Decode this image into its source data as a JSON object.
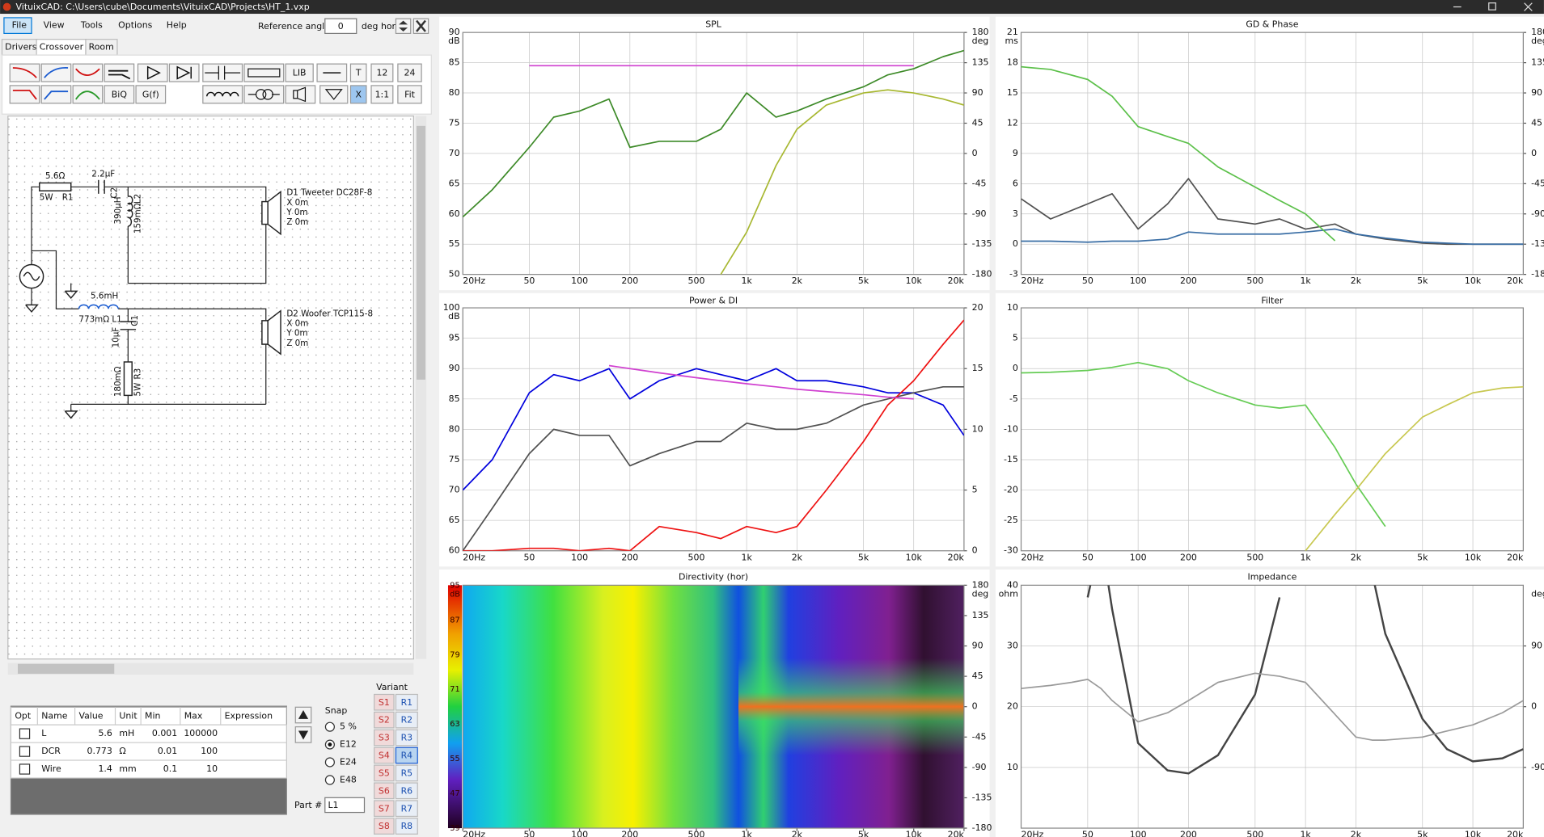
{
  "window": {
    "title": "VituixCAD: C:\\Users\\cube\\Documents\\VituixCAD\\Projects\\HT_1.vxp"
  },
  "menu": [
    "File",
    "View",
    "Tools",
    "Options",
    "Help"
  ],
  "reference": {
    "label": "Reference angle",
    "value": "0",
    "unit": "deg hor"
  },
  "tabs": [
    "Drivers",
    "Crossover",
    "Room"
  ],
  "toolbar": [
    "LIB",
    "T",
    "12",
    "24",
    "BiQ",
    "G(f)",
    "X",
    "1:1",
    "Fit"
  ],
  "schematic": {
    "labels": [
      "5.6Ω",
      "5W",
      "R1",
      "2.2µF",
      "C2",
      "390µH",
      "L2",
      "159mΩ",
      "D1 Tweeter DC28F-8",
      "X 0m",
      "Y 0m",
      "Z 0m",
      "5.6mH",
      "773mΩ L1",
      "10µF",
      "C1",
      "180mΩ",
      "R3",
      "5W",
      "D2 Woofer TCP115-8",
      "X 0m",
      "Y 0m",
      "Z 0m"
    ]
  },
  "table": {
    "headers": [
      "Opt",
      "Name",
      "Value",
      "Unit",
      "Min",
      "Max",
      "Expression"
    ],
    "rows": [
      [
        "L",
        5.6,
        "mH",
        0.001,
        100000
      ],
      [
        "DCR",
        0.773,
        "Ω",
        0.01,
        100
      ],
      [
        "Wire",
        1.4,
        "mm",
        0.1,
        10
      ]
    ]
  },
  "snap": {
    "title": "Snap",
    "options": [
      "5 %",
      "E12",
      "E24",
      "E48"
    ],
    "selected": 1
  },
  "part": {
    "label": "Part #",
    "value": "L1"
  },
  "variant": {
    "title": "Variant",
    "s": [
      "S1",
      "S2",
      "S3",
      "S4",
      "S5",
      "S6",
      "S7",
      "S8"
    ],
    "r": [
      "R1",
      "R2",
      "R3",
      "R4",
      "R5",
      "R6",
      "R7",
      "R8"
    ],
    "selected": 3
  },
  "chart_data": [
    {
      "type": "line",
      "title": "SPL",
      "y_unit": "dB",
      "y2_unit": "deg",
      "xscale": "log",
      "grid": true,
      "xlim": [
        20,
        20000
      ],
      "xticks": [
        {
          "value": 20,
          "label": "20Hz"
        },
        50,
        100,
        200,
        500,
        {
          "value": 1000,
          "label": "1k"
        },
        {
          "value": 2000,
          "label": "2k"
        },
        {
          "value": 5000,
          "label": "5k"
        },
        {
          "value": 10000,
          "label": "10k"
        },
        {
          "value": 20000,
          "label": "20k"
        }
      ],
      "ylim": [
        50,
        90
      ],
      "yticks": [
        50,
        55,
        60,
        65,
        70,
        75,
        80,
        85,
        90
      ],
      "y2lim": [
        -180,
        180
      ],
      "y2ticks": [
        -180,
        -135,
        -90,
        -45,
        0,
        45,
        90,
        135,
        180
      ],
      "x": [
        20,
        30,
        50,
        70,
        100,
        150,
        200,
        300,
        500,
        700,
        1000,
        1500,
        2000,
        3000,
        5000,
        7000,
        10000,
        15000,
        20000
      ],
      "series": [
        {
          "color": "#3d8a28",
          "values": [
            59.5,
            64,
            71,
            76,
            77,
            79,
            71,
            72,
            72,
            74,
            80,
            76,
            77,
            79,
            81,
            83,
            84,
            86,
            87
          ]
        },
        {
          "color": "#d040d0",
          "values": [
            null,
            null,
            84.5,
            84.5,
            84.5,
            84.5,
            84.5,
            84.5,
            84.5,
            84.5,
            84.5,
            84.5,
            84.5,
            84.5,
            84.5,
            84.5,
            84.5,
            null,
            null
          ]
        },
        {
          "color": "#a8b832",
          "values": [
            null,
            null,
            null,
            null,
            null,
            null,
            null,
            null,
            null,
            50,
            57,
            68,
            74,
            78,
            80,
            80.5,
            80,
            79,
            78
          ]
        }
      ]
    },
    {
      "type": "line",
      "title": "GD & Phase",
      "y_unit": "ms",
      "y2_unit": "deg",
      "xscale": "log",
      "grid": true,
      "xlim": [
        20,
        20000
      ],
      "xticks": [
        {
          "value": 20,
          "label": "20Hz"
        },
        50,
        100,
        200,
        500,
        {
          "value": 1000,
          "label": "1k"
        },
        {
          "value": 2000,
          "label": "2k"
        },
        {
          "value": 5000,
          "label": "5k"
        },
        {
          "value": 10000,
          "label": "10k"
        },
        {
          "value": 20000,
          "label": "20k"
        }
      ],
      "ylim": [
        -3,
        21
      ],
      "yticks": [
        -3,
        0,
        3,
        6,
        9,
        12,
        15,
        18,
        21
      ],
      "y2lim": [
        -180,
        180
      ],
      "y2ticks": [
        -180,
        -135,
        -90,
        -45,
        0,
        45,
        90,
        135,
        180
      ],
      "x": [
        20,
        30,
        50,
        70,
        100,
        150,
        200,
        300,
        500,
        700,
        1000,
        1500,
        2000,
        3000,
        5000,
        7000,
        10000,
        15000,
        20000
      ],
      "series": [
        {
          "color": "#505050",
          "values": [
            4.5,
            2.5,
            4,
            5,
            1.5,
            4,
            6.5,
            2.5,
            2,
            2.5,
            1.5,
            2,
            1,
            0.5,
            0.1,
            0,
            0,
            0,
            0
          ]
        },
        {
          "color": "#3a6ea5",
          "values": [
            0.3,
            0.3,
            0.2,
            0.3,
            0.3,
            0.5,
            1.2,
            1,
            1,
            1,
            1.2,
            1.5,
            1,
            0.6,
            0.2,
            0.1,
            0,
            0,
            0
          ]
        },
        {
          "color": "#5cc04a",
          "axis": "y2",
          "values": [
            129,
            125,
            110,
            85,
            40,
            25,
            15,
            -20,
            -50,
            -70,
            -90,
            -130,
            null,
            null,
            null,
            null,
            null,
            null,
            null
          ]
        }
      ]
    },
    {
      "type": "line",
      "title": "Power & DI",
      "y_unit": "dB",
      "xscale": "log",
      "grid": true,
      "xlim": [
        20,
        20000
      ],
      "xticks": [
        {
          "value": 20,
          "label": "20Hz"
        },
        50,
        100,
        200,
        500,
        {
          "value": 1000,
          "label": "1k"
        },
        {
          "value": 2000,
          "label": "2k"
        },
        {
          "value": 5000,
          "label": "5k"
        },
        {
          "value": 10000,
          "label": "10k"
        },
        {
          "value": 20000,
          "label": "20k"
        }
      ],
      "ylim": [
        60,
        100
      ],
      "yticks": [
        60,
        65,
        70,
        75,
        80,
        85,
        90,
        95,
        100
      ],
      "y2lim": [
        0,
        20
      ],
      "y2ticks": [
        0,
        5,
        10,
        15,
        20
      ],
      "x": [
        20,
        30,
        50,
        70,
        100,
        150,
        200,
        300,
        500,
        700,
        1000,
        1500,
        2000,
        3000,
        5000,
        7000,
        10000,
        15000,
        20000
      ],
      "series": [
        {
          "color": "#0000dd",
          "values": [
            70,
            75,
            86,
            89,
            88,
            90,
            85,
            88,
            90,
            89,
            88,
            90,
            88,
            88,
            87,
            86,
            86,
            84,
            79
          ]
        },
        {
          "color": "#505050",
          "values": [
            60,
            67,
            76,
            80,
            79,
            79,
            74,
            76,
            78,
            78,
            81,
            80,
            80,
            81,
            84,
            85,
            86,
            87,
            87
          ]
        },
        {
          "color": "#ee1111",
          "axis": "y2",
          "values": [
            0,
            0,
            0.2,
            0.2,
            0,
            0.2,
            0,
            2,
            1.5,
            1,
            2,
            1.5,
            2,
            5,
            9,
            12,
            14,
            17,
            19
          ]
        },
        {
          "color": "#d040d0",
          "values": [
            null,
            null,
            null,
            null,
            null,
            90.5,
            90,
            89.3,
            88.5,
            88,
            87.5,
            87,
            86.6,
            86.2,
            85.7,
            85.3,
            85,
            null,
            null
          ]
        }
      ]
    },
    {
      "type": "line",
      "title": "Filter",
      "xscale": "log",
      "grid": true,
      "xlim": [
        20,
        20000
      ],
      "xticks": [
        {
          "value": 20,
          "label": "20Hz"
        },
        50,
        100,
        200,
        500,
        {
          "value": 1000,
          "label": "1k"
        },
        {
          "value": 2000,
          "label": "2k"
        },
        {
          "value": 5000,
          "label": "5k"
        },
        {
          "value": 10000,
          "label": "10k"
        },
        {
          "value": 20000,
          "label": "20k"
        }
      ],
      "ylim": [
        -30,
        10
      ],
      "yticks": [
        -30,
        -25,
        -20,
        -15,
        -10,
        -5,
        0,
        5,
        10
      ],
      "x": [
        20,
        30,
        50,
        70,
        100,
        150,
        200,
        300,
        500,
        700,
        1000,
        1500,
        2000,
        3000,
        5000,
        7000,
        10000,
        15000,
        20000
      ],
      "series": [
        {
          "color": "#66cc55",
          "values": [
            -0.7,
            -0.6,
            -0.3,
            0.2,
            1,
            0,
            -2,
            -4,
            -6,
            -6.5,
            -6,
            -13,
            -19,
            -26,
            null,
            null,
            null,
            null,
            null
          ]
        },
        {
          "color": "#c8c850",
          "values": [
            null,
            null,
            null,
            null,
            null,
            null,
            null,
            null,
            null,
            null,
            -30,
            -24,
            -20,
            -14,
            -8,
            -6,
            -4,
            -3.2,
            -3
          ]
        }
      ]
    },
    {
      "type": "heatmap",
      "title": "Directivity (hor)",
      "c_unit": "dB",
      "y2_unit": "deg",
      "xscale": "log",
      "xlim": [
        20,
        20000
      ],
      "xticks": [
        {
          "value": 20,
          "label": "20Hz"
        },
        50,
        100,
        200,
        500,
        {
          "value": 1000,
          "label": "1k"
        },
        {
          "value": 2000,
          "label": "2k"
        },
        {
          "value": 5000,
          "label": "5k"
        },
        {
          "value": 10000,
          "label": "10k"
        },
        {
          "value": 20000,
          "label": "20k"
        }
      ],
      "clim": [
        39,
        95
      ],
      "cticks": [
        39,
        47,
        55,
        63,
        71,
        79,
        87,
        95
      ],
      "y2lim": [
        -180,
        180
      ],
      "y2ticks": [
        -180,
        -135,
        -90,
        -45,
        0,
        45,
        90,
        135,
        180
      ]
    },
    {
      "type": "line",
      "title": "Impedance",
      "y_unit": "ohm",
      "y2_unit": "deg",
      "xscale": "log",
      "grid": true,
      "xlim": [
        20,
        20000
      ],
      "xticks": [
        {
          "value": 20,
          "label": "20Hz"
        },
        50,
        100,
        200,
        500,
        {
          "value": 1000,
          "label": "1k"
        },
        {
          "value": 2000,
          "label": "2k"
        },
        {
          "value": 5000,
          "label": "5k"
        },
        {
          "value": 10000,
          "label": "10k"
        },
        {
          "value": 20000,
          "label": "20k"
        }
      ],
      "ylim": [
        0,
        40
      ],
      "yticks": [
        10,
        20,
        30,
        40
      ],
      "y2lim": [
        -180,
        180
      ],
      "y2ticks": [
        -90,
        0,
        90
      ],
      "x": [
        20,
        30,
        40,
        50,
        60,
        70,
        100,
        150,
        200,
        300,
        500,
        700,
        1000,
        2000,
        2500,
        3000,
        5000,
        7000,
        10000,
        15000,
        20000
      ],
      "series": [
        {
          "color": "#444444",
          "width": 2,
          "values": [
            null,
            null,
            null,
            38,
            48,
            36,
            14,
            9.5,
            9,
            12,
            22,
            38,
            null,
            null,
            42,
            32,
            18,
            13,
            11,
            11.5,
            13
          ]
        },
        {
          "color": "#9a9a9a",
          "values": [
            23,
            23.5,
            24,
            24.5,
            23,
            21,
            17.5,
            19,
            21,
            24,
            25.5,
            25,
            24,
            15,
            14.5,
            14.5,
            15,
            16,
            17,
            19,
            21
          ]
        }
      ]
    }
  ]
}
